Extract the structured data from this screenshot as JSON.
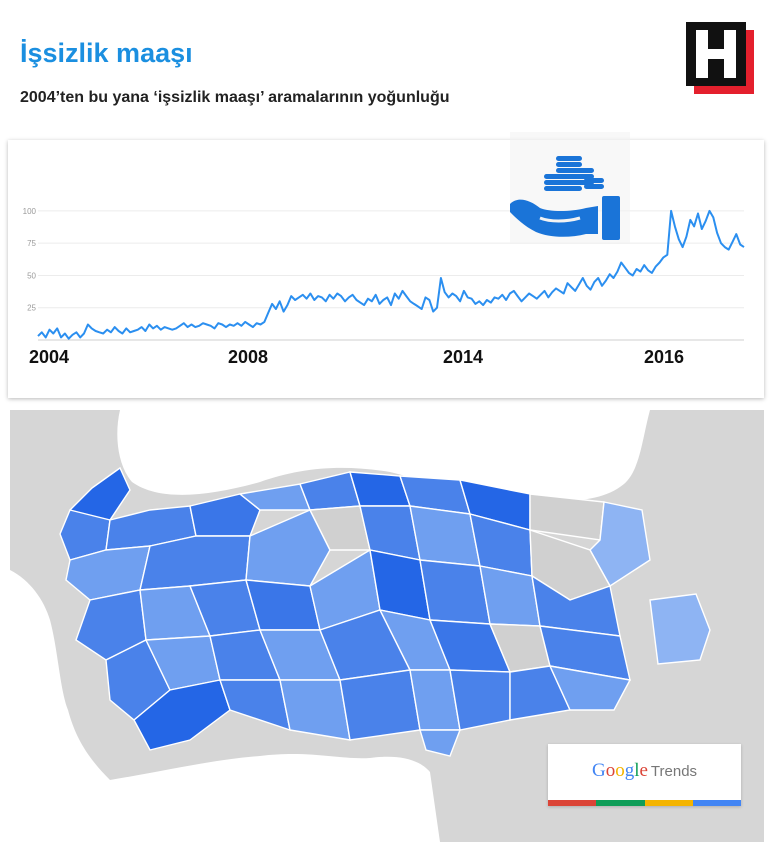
{
  "header": {
    "title": "İşsizlik maaşı",
    "subtitle": "2004’ten bu yana ‘işsizlik maaşı’ aramalarının yoğunluğu",
    "logo_letter": "H"
  },
  "colors": {
    "title": "#1b8fe0",
    "line": "#2b8ff0",
    "map_water": "#ffffff",
    "map_land": "#d6d6d6",
    "province_dark": "#2466e6",
    "province_mid": "#4a82ea",
    "province_light": "#6f9ff0",
    "province_pale": "#8eb4f3",
    "province_none": "#d0d0d0",
    "logo_red": "#e4202d",
    "logo_black": "#111111"
  },
  "icons": {
    "chart_badge": "hand-holding-coins-icon",
    "logo": "h-logo-icon"
  },
  "chart_data": {
    "type": "line",
    "ylim": [
      0,
      110
    ],
    "yticks": [
      25,
      50,
      75,
      100
    ],
    "x_labels": [
      "2004",
      "2008",
      "2014",
      "2016"
    ],
    "xlabel": "",
    "ylabel": "",
    "grid": true,
    "series": [
      {
        "values": [
          3,
          6,
          2,
          8,
          5,
          9,
          2,
          5,
          1,
          4,
          6,
          2,
          5,
          12,
          9,
          7,
          6,
          5,
          8,
          6,
          10,
          7,
          5,
          9,
          6,
          7,
          8,
          10,
          7,
          12,
          9,
          11,
          8,
          10,
          9,
          8,
          9,
          11,
          13,
          10,
          12,
          10,
          11,
          13,
          12,
          11,
          9,
          13,
          12,
          10,
          12,
          11,
          13,
          11,
          14,
          12,
          10,
          13,
          12,
          14,
          21,
          28,
          24,
          30,
          22,
          27,
          34,
          31,
          33,
          35,
          32,
          36,
          31,
          34,
          33,
          30,
          35,
          32,
          36,
          34,
          30,
          33,
          35,
          31,
          29,
          27,
          32,
          30,
          35,
          28,
          31,
          33,
          27,
          36,
          32,
          38,
          34,
          30,
          28,
          26,
          24,
          33,
          31,
          22,
          25,
          48,
          37,
          33,
          36,
          34,
          30,
          38,
          33,
          32,
          28,
          30,
          27,
          31,
          29,
          33,
          32,
          35,
          31,
          36,
          38,
          34,
          30,
          33,
          36,
          34,
          32,
          35,
          38,
          33,
          37,
          40,
          38,
          36,
          44,
          41,
          38,
          43,
          48,
          42,
          39,
          45,
          48,
          42,
          46,
          51,
          48,
          53,
          60,
          56,
          52,
          50,
          55,
          53,
          58,
          54,
          52,
          57,
          60,
          64,
          66,
          100,
          88,
          78,
          72,
          80,
          93,
          88,
          98,
          86,
          92,
          100,
          95,
          83,
          75,
          72,
          70,
          76,
          82,
          74,
          72
        ]
      }
    ]
  },
  "map": {
    "badge": {
      "brand": "Google",
      "product": "Trends",
      "bar_colors": [
        "#db4437",
        "#0f9d58",
        "#f4b400",
        "#4285f4"
      ]
    }
  }
}
